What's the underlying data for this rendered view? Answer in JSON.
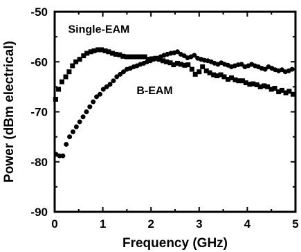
{
  "chart_data": {
    "type": "scatter",
    "xlabel": "Frequency (GHz)",
    "ylabel": "Power (dBm electrical)",
    "xlim": [
      0,
      5
    ],
    "ylim": [
      -90,
      -50
    ],
    "xticks": [
      0,
      1,
      2,
      3,
      4,
      5
    ],
    "yticks": [
      -90,
      -80,
      -70,
      -60,
      -50
    ],
    "grid": false,
    "legend": "none",
    "annotations": [
      {
        "text": "Single-EAM",
        "series": "Single-EAM"
      },
      {
        "text": "B-EAM",
        "series": "B-EAM"
      }
    ],
    "series": [
      {
        "name": "Single-EAM",
        "marker": "square",
        "x": [
          0.02,
          0.08,
          0.15,
          0.23,
          0.3,
          0.37,
          0.44,
          0.52,
          0.6,
          0.67,
          0.75,
          0.82,
          0.9,
          0.97,
          1.05,
          1.12,
          1.2,
          1.27,
          1.35,
          1.42,
          1.5,
          1.57,
          1.65,
          1.72,
          1.8,
          1.87,
          1.95,
          2.02,
          2.1,
          2.17,
          2.25,
          2.32,
          2.4,
          2.47,
          2.55,
          2.62,
          2.7,
          2.77,
          2.85,
          2.92,
          3.0,
          3.07,
          3.15,
          3.22,
          3.3,
          3.37,
          3.45,
          3.52,
          3.6,
          3.67,
          3.75,
          3.82,
          3.9,
          3.97,
          4.05,
          4.12,
          4.2,
          4.27,
          4.35,
          4.42,
          4.5,
          4.57,
          4.65,
          4.72,
          4.8,
          4.87,
          4.95
        ],
        "y": [
          -67.5,
          -65.5,
          -64.0,
          -63.0,
          -62.0,
          -60.8,
          -60.0,
          -59.5,
          -58.8,
          -58.3,
          -58.0,
          -57.8,
          -57.6,
          -57.6,
          -57.8,
          -58.0,
          -58.3,
          -58.5,
          -58.6,
          -58.9,
          -59.0,
          -59.0,
          -59.0,
          -59.0,
          -59.0,
          -59.0,
          -59.5,
          -59.4,
          -59.3,
          -59.5,
          -59.8,
          -60.0,
          -60.2,
          -60.6,
          -60.3,
          -60.5,
          -60.7,
          -60.6,
          -61.5,
          -62.5,
          -62.0,
          -61.0,
          -61.8,
          -62.2,
          -62.6,
          -62.8,
          -62.6,
          -63.0,
          -63.5,
          -63.2,
          -63.6,
          -63.8,
          -63.8,
          -64.2,
          -64.5,
          -64.4,
          -64.6,
          -65.0,
          -64.8,
          -65.0,
          -65.5,
          -65.3,
          -66.0,
          -65.7,
          -66.2,
          -65.9,
          -66.5
        ]
      },
      {
        "name": "B-EAM",
        "marker": "circle",
        "x": [
          0.03,
          0.1,
          0.17,
          0.24,
          0.31,
          0.38,
          0.45,
          0.52,
          0.59,
          0.66,
          0.73,
          0.8,
          0.87,
          0.94,
          1.01,
          1.08,
          1.15,
          1.22,
          1.29,
          1.36,
          1.43,
          1.5,
          1.57,
          1.64,
          1.71,
          1.78,
          1.85,
          1.92,
          1.99,
          2.06,
          2.13,
          2.2,
          2.27,
          2.34,
          2.41,
          2.48,
          2.55,
          2.62,
          2.69,
          2.76,
          2.83,
          2.9,
          2.97,
          3.04,
          3.11,
          3.18,
          3.25,
          3.32,
          3.39,
          3.46,
          3.53,
          3.6,
          3.67,
          3.74,
          3.81,
          3.88,
          3.95,
          4.02,
          4.09,
          4.16,
          4.23,
          4.3,
          4.37,
          4.44,
          4.51,
          4.58,
          4.65,
          4.72,
          4.79,
          4.86,
          4.93
        ],
        "y": [
          -78.5,
          -78.8,
          -78.8,
          -76.5,
          -75.0,
          -74.0,
          -73.0,
          -72.0,
          -71.0,
          -70.0,
          -69.0,
          -68.0,
          -67.0,
          -66.5,
          -65.5,
          -65.0,
          -64.5,
          -63.8,
          -63.0,
          -62.5,
          -62.0,
          -61.5,
          -61.3,
          -61.0,
          -60.8,
          -60.5,
          -60.3,
          -60.0,
          -59.8,
          -59.5,
          -59.3,
          -59.0,
          -58.7,
          -58.5,
          -58.3,
          -58.2,
          -58.0,
          -58.5,
          -58.8,
          -59.2,
          -59.0,
          -58.7,
          -59.3,
          -59.5,
          -59.7,
          -59.8,
          -60.0,
          -60.3,
          -60.5,
          -60.2,
          -60.5,
          -60.7,
          -61.0,
          -60.8,
          -60.6,
          -60.5,
          -61.0,
          -60.8,
          -60.5,
          -60.8,
          -61.0,
          -61.3,
          -61.5,
          -61.0,
          -61.3,
          -61.6,
          -61.8,
          -61.6,
          -62.0,
          -61.8,
          -61.5
        ]
      }
    ]
  }
}
